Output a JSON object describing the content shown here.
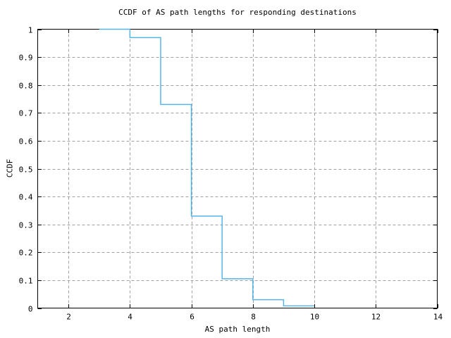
{
  "window": {
    "background_color": "#ffffff"
  },
  "chart_data": {
    "type": "line",
    "subtype": "step",
    "title": "CCDF of AS path lengths for responding destinations",
    "xlabel": "AS path length",
    "ylabel": "CCDF",
    "xlim": [
      1,
      14
    ],
    "ylim": [
      0,
      1
    ],
    "grid": true,
    "legend": "none",
    "line_color": "#56b4e9",
    "grid_color": "#a0a0a0",
    "frame_color": "#000000",
    "text_color": "#000000",
    "xticks": [
      {
        "value": 2,
        "label": "2"
      },
      {
        "value": 4,
        "label": "4"
      },
      {
        "value": 6,
        "label": "6"
      },
      {
        "value": 8,
        "label": "8"
      },
      {
        "value": 10,
        "label": "10"
      },
      {
        "value": 12,
        "label": "12"
      },
      {
        "value": 14,
        "label": "14"
      }
    ],
    "yticks": [
      {
        "value": 0,
        "label": "0"
      },
      {
        "value": 0.1,
        "label": "0.1"
      },
      {
        "value": 0.2,
        "label": "0.2"
      },
      {
        "value": 0.3,
        "label": "0.3"
      },
      {
        "value": 0.4,
        "label": "0.4"
      },
      {
        "value": 0.5,
        "label": "0.5"
      },
      {
        "value": 0.6,
        "label": "0.6"
      },
      {
        "value": 0.7,
        "label": "0.7"
      },
      {
        "value": 0.8,
        "label": "0.8"
      },
      {
        "value": 0.9,
        "label": "0.9"
      },
      {
        "value": 1,
        "label": "1"
      }
    ],
    "steps": [
      {
        "from_x": 3,
        "to_x": 4,
        "ccdf": 1.0
      },
      {
        "from_x": 4,
        "to_x": 5,
        "ccdf": 0.97
      },
      {
        "from_x": 5,
        "to_x": 6,
        "ccdf": 0.73
      },
      {
        "from_x": 6,
        "to_x": 7,
        "ccdf": 0.33
      },
      {
        "from_x": 7,
        "to_x": 8,
        "ccdf": 0.105
      },
      {
        "from_x": 8,
        "to_x": 9,
        "ccdf": 0.03
      },
      {
        "from_x": 9,
        "to_x": 10,
        "ccdf": 0.008
      }
    ]
  }
}
